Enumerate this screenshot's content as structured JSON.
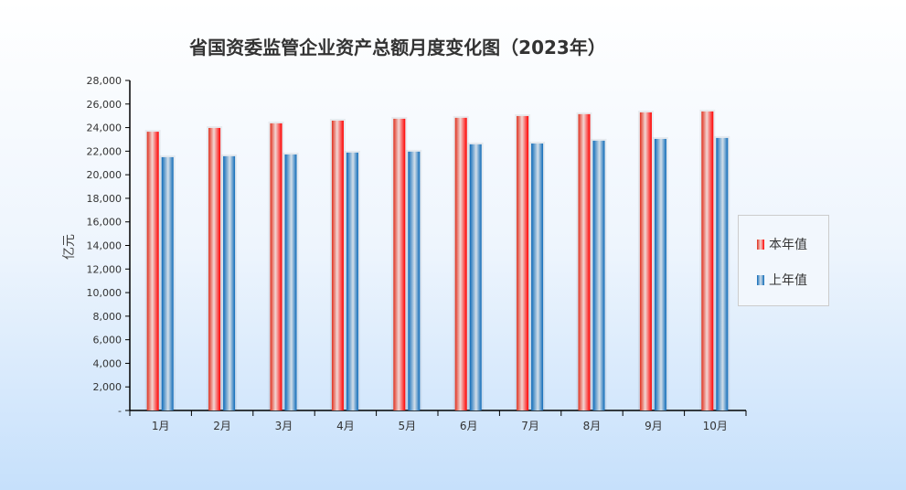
{
  "chart_data": {
    "type": "bar",
    "title": "省国资委监管企业资产总额月度变化图（2023年）",
    "ylabel": "亿元",
    "xlabel": "",
    "ylim": [
      0,
      28000
    ],
    "yticks": [
      "-",
      "2,000",
      "4,000",
      "6,000",
      "8,000",
      "10,000",
      "12,000",
      "14,000",
      "16,000",
      "18,000",
      "20,000",
      "22,000",
      "24,000",
      "26,000",
      "28,000"
    ],
    "categories": [
      "1月",
      "2月",
      "3月",
      "4月",
      "5月",
      "6月",
      "7月",
      "8月",
      "9月",
      "10月"
    ],
    "series": [
      {
        "name": "本年值",
        "color": "#e8291c",
        "values": [
          23650,
          23970,
          24360,
          24590,
          24750,
          24830,
          24980,
          25140,
          25290,
          25370
        ]
      },
      {
        "name": "上年值",
        "color": "#1a73c2",
        "values": [
          21490,
          21570,
          21720,
          21880,
          21960,
          22580,
          22650,
          22890,
          23040,
          23120
        ]
      }
    ],
    "legend": "right",
    "grid": false
  }
}
